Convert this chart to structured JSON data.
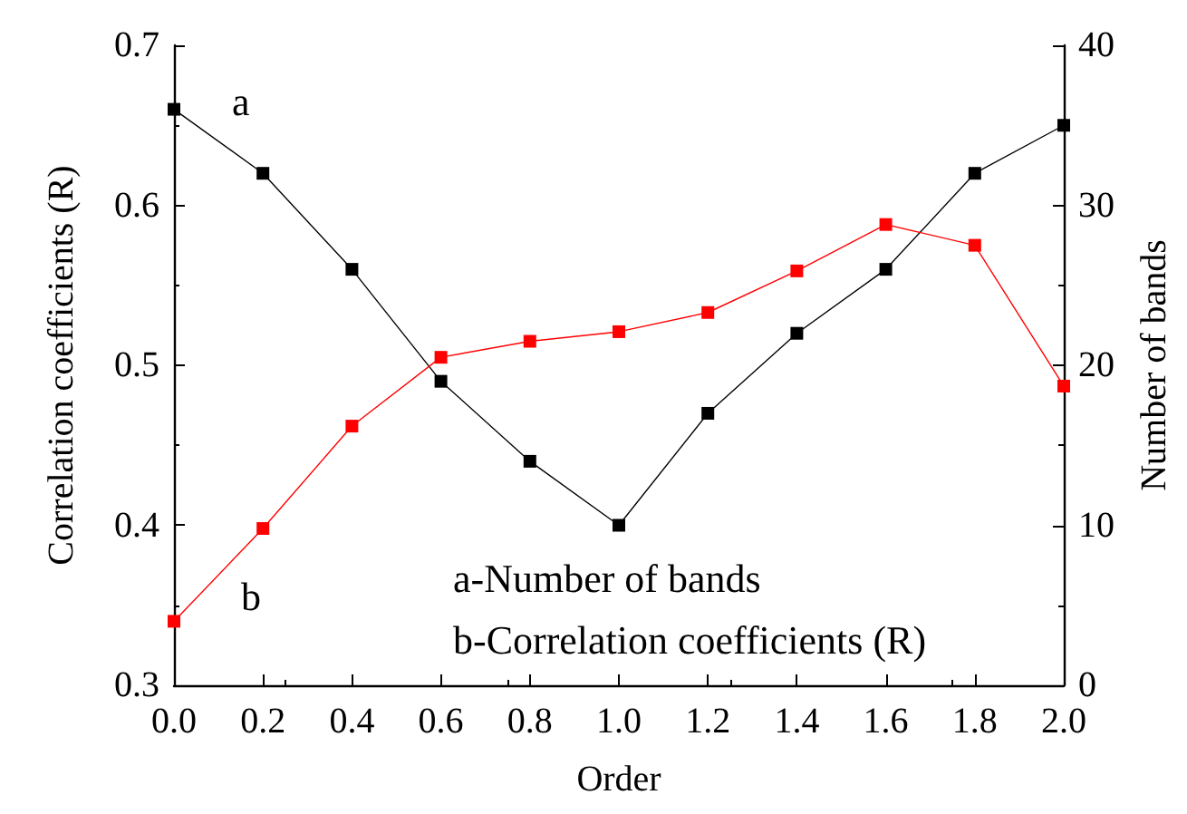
{
  "chart_data": {
    "type": "line",
    "xlabel": "Order",
    "ylabel": "Correlation coefficients (R)",
    "y2label": "Number of bands",
    "x": [
      0.0,
      0.2,
      0.4,
      0.6,
      0.8,
      1.0,
      1.2,
      1.4,
      1.6,
      1.8,
      2.0
    ],
    "series": [
      {
        "color": "#000000",
        "axis": "y2",
        "values": [
          36,
          32,
          26,
          19,
          14,
          10,
          17,
          22,
          26,
          32,
          35
        ]
      },
      {
        "color": "#ff0000",
        "values": [
          0.34,
          0.398,
          0.462,
          0.505,
          0.515,
          0.521,
          0.533,
          0.559,
          0.588,
          0.575,
          0.487
        ]
      }
    ],
    "xlim": [
      0.0,
      2.0
    ],
    "xticks": [
      {
        "value": 0,
        "label": "0.0"
      },
      {
        "value": 0.2,
        "label": "0.2"
      },
      {
        "value": 0.4,
        "label": "0.4"
      },
      {
        "value": 0.6,
        "label": "0.6"
      },
      {
        "value": 0.8,
        "label": "0.8"
      },
      {
        "value": 1,
        "label": "1.0"
      },
      {
        "value": 1.2,
        "label": "1.2"
      },
      {
        "value": 1.4,
        "label": "1.4"
      },
      {
        "value": 1.6,
        "label": "1.6"
      },
      {
        "value": 1.8,
        "label": "1.8"
      },
      {
        "value": 2,
        "label": "2.0"
      }
    ],
    "ylim": [
      0.3,
      0.7
    ],
    "yticks": [
      0.3,
      0.4,
      0.5,
      0.6,
      0.7
    ],
    "y2lim": [
      0,
      40
    ],
    "y2ticks": [
      0,
      10,
      20,
      30,
      40
    ],
    "marker": "square",
    "line_style": "solid",
    "grid": false,
    "annotations": [
      "a",
      "b",
      "a-Number of bands",
      "b-Correlation coefficients (R)"
    ]
  }
}
